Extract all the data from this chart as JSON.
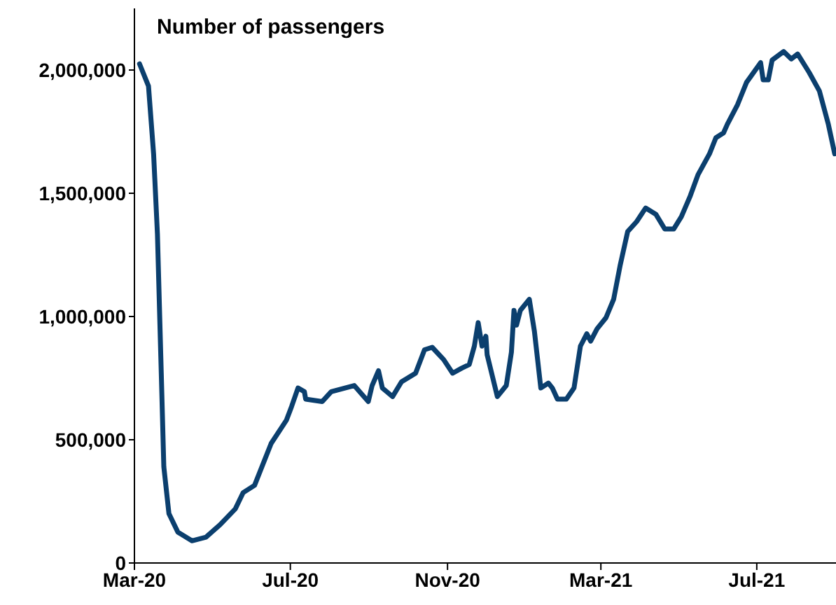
{
  "chart_data": {
    "type": "line",
    "ylabel": "Number of passengers",
    "x": [
      "2020-03-05",
      "2020-03-12",
      "2020-03-16",
      "2020-03-19",
      "2020-03-22",
      "2020-03-24",
      "2020-03-28",
      "2020-04-04",
      "2020-04-15",
      "2020-04-26",
      "2020-05-07",
      "2020-05-19",
      "2020-05-25",
      "2020-06-03",
      "2020-06-16",
      "2020-06-28",
      "2020-07-02",
      "2020-07-07",
      "2020-07-12",
      "2020-07-13",
      "2020-07-26",
      "2020-08-02",
      "2020-08-20",
      "2020-08-31",
      "2020-09-03",
      "2020-09-08",
      "2020-09-11",
      "2020-09-19",
      "2020-09-26",
      "2020-10-07",
      "2020-10-14",
      "2020-10-20",
      "2020-10-29",
      "2020-11-05",
      "2020-11-12",
      "2020-11-18",
      "2020-11-22",
      "2020-11-25",
      "2020-11-28",
      "2020-12-01",
      "2020-12-02",
      "2020-12-10",
      "2020-12-17",
      "2020-12-21",
      "2020-12-23",
      "2020-12-25",
      "2020-12-28",
      "2021-01-04",
      "2021-01-08",
      "2021-01-13",
      "2021-01-19",
      "2021-01-22",
      "2021-01-26",
      "2021-02-02",
      "2021-02-08",
      "2021-02-13",
      "2021-02-18",
      "2021-02-21",
      "2021-02-26",
      "2021-03-05",
      "2021-03-11",
      "2021-03-16",
      "2021-03-22",
      "2021-03-29",
      "2021-04-05",
      "2021-04-13",
      "2021-04-20",
      "2021-04-27",
      "2021-05-03",
      "2021-05-10",
      "2021-05-16",
      "2021-05-25",
      "2021-05-30",
      "2021-06-05",
      "2021-06-08",
      "2021-06-16",
      "2021-06-23",
      "2021-07-04",
      "2021-07-06",
      "2021-07-10",
      "2021-07-13",
      "2021-07-22",
      "2021-07-28",
      "2021-08-02",
      "2021-08-11",
      "2021-08-19",
      "2021-08-26",
      "2021-08-31"
    ],
    "series": [
      {
        "color": "#0b3f6e",
        "values": [
          2025000,
          1935000,
          1660000,
          1335000,
          770000,
          390000,
          200000,
          125000,
          90000,
          105000,
          155000,
          220000,
          285000,
          315000,
          485000,
          580000,
          635000,
          710000,
          695000,
          665000,
          655000,
          695000,
          720000,
          655000,
          720000,
          780000,
          710000,
          675000,
          735000,
          770000,
          865000,
          875000,
          825000,
          770000,
          790000,
          805000,
          880000,
          975000,
          880000,
          920000,
          845000,
          675000,
          720000,
          855000,
          1025000,
          965000,
          1025000,
          1070000,
          940000,
          710000,
          730000,
          710000,
          665000,
          665000,
          710000,
          880000,
          930000,
          900000,
          950000,
          995000,
          1070000,
          1205000,
          1345000,
          1385000,
          1440000,
          1415000,
          1355000,
          1355000,
          1405000,
          1490000,
          1575000,
          1660000,
          1725000,
          1745000,
          1780000,
          1860000,
          1950000,
          2030000,
          1960000,
          1960000,
          2040000,
          2075000,
          2045000,
          2065000,
          1990000,
          1915000,
          1780000,
          1660000
        ]
      }
    ],
    "xlim": [
      "2020-03-01",
      "2021-09-01"
    ],
    "xticks": [
      {
        "value": "2020-03-01",
        "label": "Mar-20"
      },
      {
        "value": "2020-07-01",
        "label": "Jul-20"
      },
      {
        "value": "2020-11-01",
        "label": "Nov-20"
      },
      {
        "value": "2021-03-01",
        "label": "Mar-21"
      },
      {
        "value": "2021-07-01",
        "label": "Jul-21"
      }
    ],
    "ylim": [
      0,
      2250000
    ],
    "yticks": [
      {
        "value": 0,
        "label": "0"
      },
      {
        "value": 500000,
        "label": "500,000"
      },
      {
        "value": 1000000,
        "label": "1,000,000"
      },
      {
        "value": 1500000,
        "label": "1,500,000"
      },
      {
        "value": 2000000,
        "label": "2,000,000"
      }
    ],
    "grid": false,
    "legend": false,
    "marker": "none",
    "line_style": "solid"
  }
}
